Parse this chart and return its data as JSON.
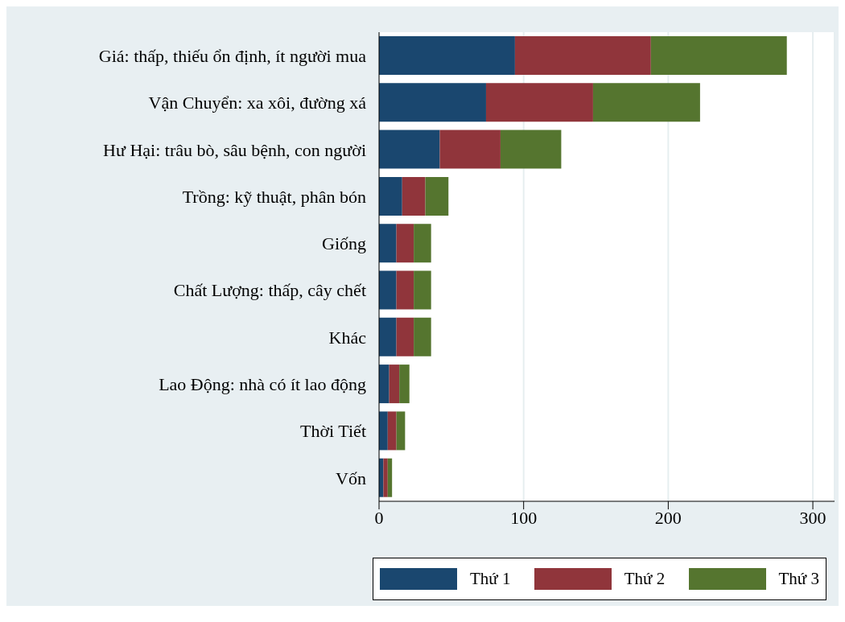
{
  "chart_data": {
    "type": "bar",
    "orientation": "horizontal",
    "stacked": true,
    "categories": [
      "Giá: thấp, thiếu ổn định, ít người mua",
      "Vận Chuyển: xa xôi, đường xá",
      "Hư Hại: trâu bò, sâu bệnh, con người",
      "Trồng: kỹ thuật, phân bón",
      "Giống",
      "Chất Lượng: thấp, cây chết",
      "Khác",
      "Lao Động: nhà có ít lao động",
      "Thời Tiết",
      "Vốn"
    ],
    "series": [
      {
        "name": "Thứ 1",
        "color": "#1a476f",
        "values": [
          94,
          74,
          42,
          16,
          12,
          12,
          12,
          7,
          6,
          3
        ]
      },
      {
        "name": "Thứ 2",
        "color": "#90353b",
        "values": [
          94,
          74,
          42,
          16,
          12,
          12,
          12,
          7,
          6,
          3
        ]
      },
      {
        "name": "Thứ 3",
        "color": "#55752f",
        "values": [
          94,
          74,
          42,
          16,
          12,
          12,
          12,
          7,
          6,
          3
        ]
      }
    ],
    "xlim": [
      0,
      315
    ],
    "xticks": [
      0,
      100,
      200,
      300
    ],
    "grid": "x",
    "legend": "bottom"
  }
}
